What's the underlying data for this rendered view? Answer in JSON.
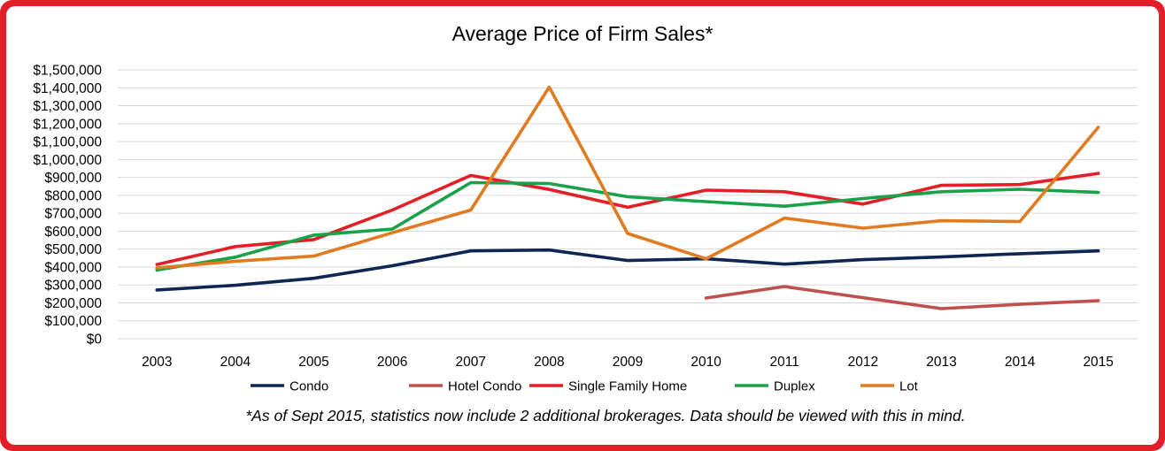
{
  "chart_data": {
    "type": "line",
    "title": "Average Price of Firm Sales*",
    "xlabel": "",
    "ylabel": "",
    "categories": [
      "2003",
      "2004",
      "2005",
      "2006",
      "2007",
      "2008",
      "2009",
      "2010",
      "2011",
      "2012",
      "2013",
      "2014",
      "2015"
    ],
    "ylim": [
      0,
      1500000
    ],
    "yticks": [
      0,
      100000,
      200000,
      300000,
      400000,
      500000,
      600000,
      700000,
      800000,
      900000,
      1000000,
      1100000,
      1200000,
      1300000,
      1400000,
      1500000
    ],
    "ytick_labels": [
      "$0",
      "$100,000",
      "$200,000",
      "$300,000",
      "$400,000",
      "$500,000",
      "$600,000",
      "$700,000",
      "$800,000",
      "$900,000",
      "$1,000,000",
      "$1,100,000",
      "$1,200,000",
      "$1,300,000",
      "$1,400,000",
      "$1,500,000"
    ],
    "grid": true,
    "legend_position": "bottom",
    "series": [
      {
        "name": "Condo",
        "color": "#0f2552",
        "values": [
          272000,
          298000,
          337000,
          407000,
          490000,
          495000,
          436000,
          446000,
          416000,
          441000,
          456000,
          474000,
          490000
        ]
      },
      {
        "name": "Hotel Condo",
        "color": "#c0504d",
        "values": [
          null,
          null,
          null,
          null,
          null,
          null,
          null,
          227000,
          291000,
          229000,
          168000,
          192000,
          212000
        ]
      },
      {
        "name": "Single Family Home",
        "color": "#e41e26",
        "values": [
          414000,
          514000,
          553000,
          718000,
          911000,
          833000,
          733000,
          829000,
          820000,
          751000,
          856000,
          860000,
          922000
        ]
      },
      {
        "name": "Duplex",
        "color": "#1aa24a",
        "values": [
          383000,
          455000,
          578000,
          612000,
          871000,
          866000,
          792000,
          765000,
          739000,
          782000,
          820000,
          834000,
          816000
        ]
      },
      {
        "name": "Lot",
        "color": "#e07b20",
        "values": [
          395000,
          432000,
          461000,
          591000,
          718000,
          1404000,
          587000,
          446000,
          673000,
          617000,
          658000,
          654000,
          1180000
        ]
      }
    ],
    "footnote": "*As of Sept 2015, statistics now include 2 additional brokerages. Data should be viewed with this in mind."
  }
}
